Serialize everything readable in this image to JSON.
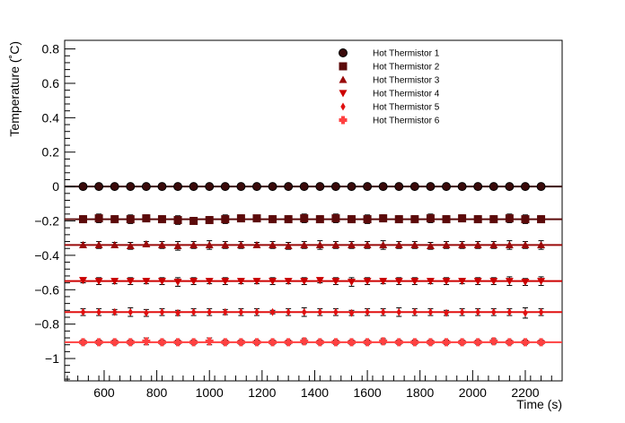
{
  "chart_data": {
    "type": "scatter",
    "xlabel": "Time (s)",
    "ylabel": "Temperature (˚C)",
    "xlim": [
      450,
      2340
    ],
    "ylim": [
      -1.13,
      0.85
    ],
    "x_ticks": [
      600,
      800,
      1000,
      1200,
      1400,
      1600,
      1800,
      2000,
      2200
    ],
    "y_ticks": [
      0.8,
      0.6,
      0.4,
      0.2,
      0,
      -0.2,
      -0.4,
      -0.6,
      -0.8,
      -1
    ],
    "x_tick_labels": [
      "600",
      "800",
      "1000",
      "1200",
      "1400",
      "1600",
      "1800",
      "2000",
      "2200"
    ],
    "y_tick_labels": [
      "0.8",
      "0.6",
      "0.4",
      "0.2",
      "0",
      "−0.2",
      "−0.4",
      "−0.6",
      "−0.8",
      "−1"
    ],
    "legend_position": "top-right",
    "grid": false,
    "x": [
      520,
      580,
      640,
      700,
      760,
      820,
      880,
      940,
      1000,
      1060,
      1120,
      1180,
      1240,
      1300,
      1360,
      1420,
      1480,
      1540,
      1600,
      1660,
      1720,
      1780,
      1840,
      1900,
      1960,
      2020,
      2080,
      2140,
      2200,
      2260
    ],
    "series": [
      {
        "name": "Hot Thermistor 1",
        "color": "#3a0a0a",
        "marker": "circle",
        "y": [
          0,
          0,
          0,
          0,
          0,
          0,
          0,
          0,
          0,
          0,
          0,
          0,
          0,
          0,
          0,
          0,
          0,
          0,
          0,
          0,
          0,
          0,
          0,
          0,
          0,
          0,
          0,
          0,
          0,
          0
        ],
        "err": [
          0.005,
          0.005,
          0.005,
          0.005,
          0.005,
          0.005,
          0.005,
          0.005,
          0.005,
          0.005,
          0.005,
          0.005,
          0.005,
          0.005,
          0.005,
          0.005,
          0.005,
          0.005,
          0.005,
          0.005,
          0.005,
          0.005,
          0.005,
          0.005,
          0.005,
          0.005,
          0.005,
          0.005,
          0.005,
          0.005
        ],
        "fit": 0
      },
      {
        "name": "Hot Thermistor 2",
        "color": "#5c0a0a",
        "marker": "square",
        "y": [
          -0.19,
          -0.185,
          -0.19,
          -0.19,
          -0.185,
          -0.19,
          -0.195,
          -0.2,
          -0.195,
          -0.19,
          -0.185,
          -0.185,
          -0.19,
          -0.19,
          -0.185,
          -0.19,
          -0.185,
          -0.19,
          -0.19,
          -0.185,
          -0.19,
          -0.19,
          -0.185,
          -0.19,
          -0.185,
          -0.19,
          -0.19,
          -0.185,
          -0.19,
          -0.19
        ],
        "err": [
          0.02,
          0.025,
          0.02,
          0.025,
          0.02,
          0.02,
          0.025,
          0.015,
          0.02,
          0.025,
          0.02,
          0.015,
          0.02,
          0.02,
          0.025,
          0.02,
          0.025,
          0.02,
          0.025,
          0.02,
          0.02,
          0.02,
          0.025,
          0.02,
          0.02,
          0.02,
          0.02,
          0.025,
          0.025,
          0.02
        ],
        "fit": -0.19
      },
      {
        "name": "Hot Thermistor 3",
        "color": "#9a0a0a",
        "marker": "triangle-up",
        "y": [
          -0.34,
          -0.34,
          -0.34,
          -0.345,
          -0.335,
          -0.34,
          -0.345,
          -0.34,
          -0.34,
          -0.34,
          -0.34,
          -0.34,
          -0.34,
          -0.345,
          -0.34,
          -0.34,
          -0.34,
          -0.34,
          -0.34,
          -0.34,
          -0.34,
          -0.34,
          -0.345,
          -0.34,
          -0.34,
          -0.34,
          -0.34,
          -0.34,
          -0.34,
          -0.34
        ],
        "err": [
          0.015,
          0.02,
          0.015,
          0.02,
          0.015,
          0.02,
          0.025,
          0.02,
          0.025,
          0.02,
          0.02,
          0.015,
          0.02,
          0.02,
          0.02,
          0.025,
          0.02,
          0.02,
          0.02,
          0.025,
          0.02,
          0.02,
          0.02,
          0.02,
          0.02,
          0.02,
          0.02,
          0.025,
          0.02,
          0.025
        ],
        "fit": -0.34
      },
      {
        "name": "Hot Thermistor 4",
        "color": "#cc0000",
        "marker": "triangle-down",
        "y": [
          -0.545,
          -0.55,
          -0.55,
          -0.55,
          -0.55,
          -0.55,
          -0.555,
          -0.55,
          -0.55,
          -0.55,
          -0.55,
          -0.55,
          -0.55,
          -0.55,
          -0.55,
          -0.545,
          -0.55,
          -0.555,
          -0.55,
          -0.55,
          -0.55,
          -0.55,
          -0.55,
          -0.55,
          -0.55,
          -0.55,
          -0.55,
          -0.55,
          -0.555,
          -0.55
        ],
        "err": [
          0.015,
          0.02,
          0.015,
          0.02,
          0.015,
          0.02,
          0.025,
          0.02,
          0.015,
          0.02,
          0.015,
          0.015,
          0.02,
          0.015,
          0.02,
          0.015,
          0.02,
          0.025,
          0.02,
          0.015,
          0.02,
          0.02,
          0.015,
          0.02,
          0.015,
          0.02,
          0.02,
          0.025,
          0.02,
          0.025
        ],
        "fit": -0.55
      },
      {
        "name": "Hot Thermistor 5",
        "color": "#e01010",
        "marker": "diamond",
        "y": [
          -0.73,
          -0.73,
          -0.73,
          -0.73,
          -0.735,
          -0.73,
          -0.735,
          -0.73,
          -0.73,
          -0.73,
          -0.73,
          -0.73,
          -0.73,
          -0.73,
          -0.73,
          -0.73,
          -0.73,
          -0.735,
          -0.73,
          -0.73,
          -0.73,
          -0.73,
          -0.73,
          -0.735,
          -0.73,
          -0.73,
          -0.73,
          -0.73,
          -0.735,
          -0.73
        ],
        "err": [
          0.02,
          0.02,
          0.015,
          0.025,
          0.02,
          0.02,
          0.015,
          0.02,
          0.02,
          0.015,
          0.02,
          0.02,
          0.01,
          0.02,
          0.025,
          0.02,
          0.02,
          0.015,
          0.02,
          0.02,
          0.025,
          0.02,
          0.02,
          0.015,
          0.02,
          0.02,
          0.02,
          0.02,
          0.03,
          0.02
        ],
        "fit": -0.73
      },
      {
        "name": "Hot Thermistor 6",
        "color": "#ff4040",
        "marker": "cross",
        "y": [
          -0.905,
          -0.905,
          -0.905,
          -0.905,
          -0.9,
          -0.905,
          -0.905,
          -0.905,
          -0.9,
          -0.905,
          -0.905,
          -0.905,
          -0.905,
          -0.905,
          -0.9,
          -0.905,
          -0.905,
          -0.905,
          -0.905,
          -0.9,
          -0.905,
          -0.905,
          -0.905,
          -0.905,
          -0.905,
          -0.905,
          -0.9,
          -0.905,
          -0.905,
          -0.905
        ],
        "err": [
          0.012,
          0.012,
          0.012,
          0.012,
          0.02,
          0.012,
          0.012,
          0.012,
          0.02,
          0.012,
          0.012,
          0.012,
          0.012,
          0.012,
          0.015,
          0.012,
          0.012,
          0.012,
          0.012,
          0.015,
          0.012,
          0.012,
          0.012,
          0.012,
          0.012,
          0.012,
          0.015,
          0.012,
          0.012,
          0.012
        ],
        "fit": -0.905
      }
    ]
  }
}
